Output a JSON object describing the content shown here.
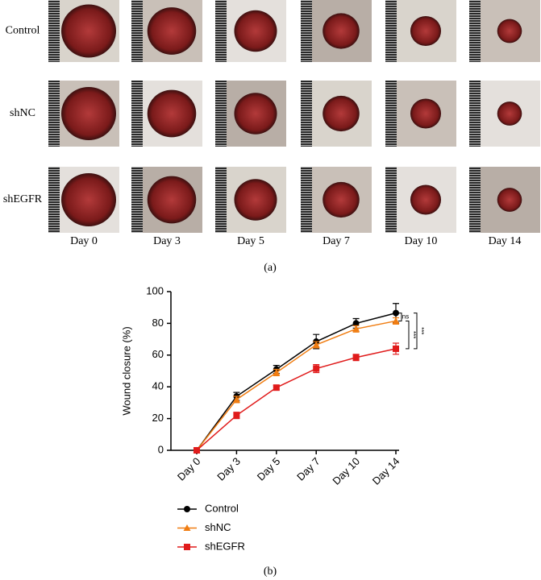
{
  "panel_a": {
    "rows": [
      "Control",
      "shNC",
      "shEGFR"
    ],
    "columns": [
      "Day 0",
      "Day 3",
      "Day 5",
      "Day 7",
      "Day 10",
      "Day 14"
    ],
    "caption": "(a)"
  },
  "chart_data": {
    "type": "line",
    "ylabel": "Wound closure (%)",
    "categories": [
      "Day 0",
      "Day 3",
      "Day 5",
      "Day 7",
      "Day 10",
      "Day 14"
    ],
    "series": [
      {
        "name": "Control",
        "color": "#000000",
        "marker": "circle",
        "values": [
          0,
          34,
          51,
          68.5,
          80,
          86.5
        ],
        "errors": [
          0,
          2.5,
          2.5,
          4.5,
          3,
          6
        ]
      },
      {
        "name": "shNC",
        "color": "#f07d12",
        "marker": "triangle",
        "values": [
          0,
          32,
          49,
          66.5,
          76.5,
          81.5
        ],
        "errors": [
          0,
          2,
          2,
          2,
          2,
          2
        ]
      },
      {
        "name": "shEGFR",
        "color": "#e01b1b",
        "marker": "square",
        "values": [
          0,
          22,
          39.5,
          51.5,
          58.5,
          64
        ],
        "errors": [
          0,
          2,
          1.5,
          2.5,
          2,
          3.5
        ]
      }
    ],
    "ylim": [
      0,
      100
    ],
    "yticks": [
      0,
      20,
      40,
      60,
      80,
      100
    ],
    "grid": false,
    "legend": "bottom",
    "annotations": [
      "ns",
      "***",
      "***"
    ]
  },
  "panel_b_caption": "(b)"
}
